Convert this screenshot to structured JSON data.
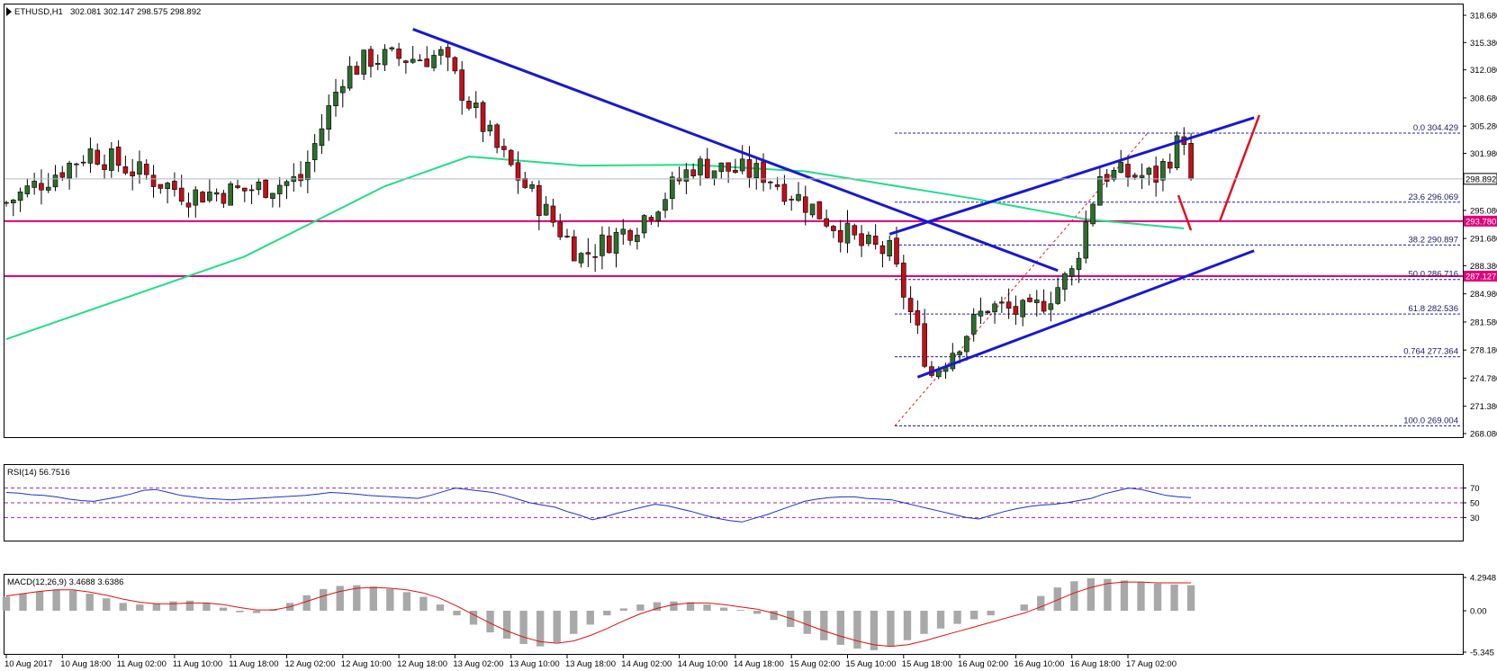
{
  "panels": {
    "main": {
      "header": {
        "symbol": "ETHUSD,H1",
        "ohlc": "302.081 302.147 298.575 298.892"
      },
      "price_axis_labels": [
        "318.680",
        "315.380",
        "312.080",
        "308.680",
        "305.280",
        "301.980",
        "298.580",
        "295.080",
        "291.680",
        "288.380",
        "284.980",
        "281.580",
        "278.180",
        "274.780",
        "271.380",
        "268.080"
      ],
      "current_price": "298.892",
      "horizontal_levels": [
        {
          "label": "293.780",
          "value": 293.78,
          "color": "#e0007a"
        },
        {
          "label": "287.127",
          "value": 287.127,
          "color": "#e0007a"
        }
      ],
      "fib_levels": [
        {
          "label": "0.0  304.429",
          "value": 304.429
        },
        {
          "label": "23.6  296.069",
          "value": 296.069
        },
        {
          "label": "38.2  290.897",
          "value": 290.897
        },
        {
          "label": "50.0  286.716",
          "value": 286.716
        },
        {
          "label": "61.8  282.536",
          "value": 282.536
        },
        {
          "label": "0.764  277.364",
          "value": 277.364
        },
        {
          "label": "100.0  269.004",
          "value": 269.004
        }
      ]
    },
    "rsi": {
      "header": "RSI(14) 56.7516",
      "axis_labels": [
        "70",
        "50",
        "30"
      ]
    },
    "macd": {
      "header": "MACD(12,26,9) 3.4688 3.6386",
      "axis_labels": [
        "4.2948",
        "0.00",
        "-5.345"
      ]
    }
  },
  "time_axis_labels": [
    "10 Aug 2017",
    "10 Aug 18:00",
    "11 Aug 02:00",
    "11 Aug 10:00",
    "11 Aug 18:00",
    "12 Aug 02:00",
    "12 Aug 10:00",
    "12 Aug 18:00",
    "13 Aug 02:00",
    "13 Aug 10:00",
    "13 Aug 18:00",
    "14 Aug 02:00",
    "14 Aug 10:00",
    "14 Aug 18:00",
    "15 Aug 02:00",
    "15 Aug 10:00",
    "15 Aug 18:00",
    "16 Aug 02:00",
    "16 Aug 10:00",
    "16 Aug 18:00",
    "17 Aug 02:00"
  ],
  "colors": {
    "bull_candle": "#2d6e2d",
    "bear_candle": "#c0101a",
    "ma_line": "#22dd88",
    "trendline": "#1818d0",
    "support_resistance": "#e0007a",
    "fib": "#2020a0",
    "rsi_line": "#1d2fd0",
    "macd_signal": "#e01010",
    "macd_hist": "#a8a8a8",
    "arrows": "#e01020"
  },
  "chart_data": {
    "type": "candlestick",
    "symbol": "ETHUSD",
    "timeframe": "H1",
    "ylim": [
      268.08,
      318.68
    ],
    "anchors": [
      {
        "x": "10 Aug 2017",
        "close": 296
      },
      {
        "x": "10 Aug 12:00",
        "close": 302.2
      },
      {
        "x": "11 Aug 02:00",
        "close": 297
      },
      {
        "x": "11 Aug 10:00",
        "close": 297.5
      },
      {
        "x": "11 Aug 18:00",
        "close": 298.8
      },
      {
        "x": "12 Aug 00:00",
        "close": 311.5
      },
      {
        "x": "12 Aug 04:00",
        "close": 313.5
      },
      {
        "x": "12 Aug 10:00",
        "close": 313.5
      },
      {
        "x": "12 Aug 14:00",
        "close": 313.8
      },
      {
        "x": "12 Aug 22:00",
        "close": 302.5
      },
      {
        "x": "13 Aug 02:00",
        "close": 298
      },
      {
        "x": "13 Aug 10:00",
        "close": 289.5
      },
      {
        "x": "13 Aug 18:00",
        "close": 293.5
      },
      {
        "x": "14 Aug 02:00",
        "close": 300.5
      },
      {
        "x": "14 Aug 12:00",
        "close": 299.5
      },
      {
        "x": "14 Aug 18:00",
        "close": 296
      },
      {
        "x": "15 Aug 02:00",
        "close": 290.8
      },
      {
        "x": "15 Aug 06:00",
        "close": 290
      },
      {
        "x": "15 Aug 12:00",
        "close": 275.2
      },
      {
        "x": "15 Aug 20:00",
        "close": 283.5
      },
      {
        "x": "16 Aug 02:00",
        "close": 282.5
      },
      {
        "x": "16 Aug 08:00",
        "close": 287.5
      },
      {
        "x": "16 Aug 12:00",
        "close": 299.5
      },
      {
        "x": "16 Aug 20:00",
        "close": 299.2
      },
      {
        "x": "17 Aug 00:00",
        "close": 304.2
      },
      {
        "x": "17 Aug 01:00",
        "close": 298.892
      }
    ],
    "moving_average": [
      {
        "x": "10 Aug 2017",
        "y": 279.5
      },
      {
        "x": "11 Aug 10:00",
        "y": 289.5
      },
      {
        "x": "12 Aug 06:00",
        "y": 298
      },
      {
        "x": "12 Aug 18:00",
        "y": 301.6
      },
      {
        "x": "13 Aug 10:00",
        "y": 300.5
      },
      {
        "x": "14 Aug 02:00",
        "y": 300.6
      },
      {
        "x": "14 Aug 18:00",
        "y": 299.8
      },
      {
        "x": "15 Aug 18:00",
        "y": 296.5
      },
      {
        "x": "16 Aug 10:00",
        "y": 294
      },
      {
        "x": "17 Aug 00:00",
        "y": 292.9
      }
    ],
    "rsi": {
      "levels": [
        70,
        50,
        30
      ],
      "values": [
        64,
        63,
        61,
        60,
        58,
        55,
        53,
        52,
        55,
        58,
        62,
        67,
        68,
        64,
        60,
        58,
        56,
        55,
        54,
        55,
        56,
        57,
        58,
        59,
        60,
        62,
        64,
        63,
        62,
        60,
        59,
        58,
        57,
        56,
        60,
        65,
        70,
        68,
        66,
        64,
        60,
        55,
        50,
        47,
        44,
        38,
        33,
        27,
        31,
        36,
        40,
        44,
        48,
        46,
        42,
        38,
        33,
        29,
        26,
        24,
        29,
        34,
        40,
        46,
        52,
        55,
        57,
        58,
        58,
        56,
        55,
        54,
        50,
        46,
        42,
        38,
        34,
        30,
        28,
        33,
        38,
        42,
        45,
        47,
        48,
        50,
        53,
        56,
        62,
        66,
        70,
        68,
        64,
        60,
        58,
        57
      ]
    },
    "macd": {
      "ylim": [
        -5.345,
        4.2948
      ],
      "histogram": [
        1.8,
        2.2,
        2.5,
        2.7,
        2.6,
        2.2,
        1.6,
        1.0,
        0.8,
        0.9,
        1.2,
        1.3,
        1.0,
        0.4,
        -0.2,
        -0.3,
        0.2,
        1.0,
        2.0,
        2.8,
        3.2,
        3.3,
        3.1,
        2.8,
        2.4,
        1.8,
        0.8,
        -0.6,
        -1.8,
        -2.8,
        -3.6,
        -4.3,
        -4.6,
        -4.1,
        -3.0,
        -1.8,
        -0.6,
        0.3,
        0.8,
        1.1,
        1.2,
        1.1,
        0.8,
        0.4,
        0.1,
        -0.4,
        -1.2,
        -2.1,
        -3.0,
        -3.8,
        -4.4,
        -4.9,
        -5.1,
        -4.6,
        -3.8,
        -3.0,
        -2.3,
        -1.7,
        -1.1,
        -0.6,
        0.0,
        0.8,
        1.9,
        3.0,
        3.8,
        4.2,
        4.1,
        3.9,
        3.7,
        3.5,
        3.4,
        3.3
      ],
      "signal": [
        1.9,
        2.2,
        2.5,
        2.7,
        2.7,
        2.4,
        2.0,
        1.5,
        1.1,
        0.9,
        0.9,
        1.0,
        1.0,
        0.8,
        0.4,
        0.1,
        0.1,
        0.5,
        1.2,
        1.9,
        2.5,
        2.9,
        3.0,
        2.9,
        2.7,
        2.3,
        1.6,
        0.6,
        -0.5,
        -1.6,
        -2.6,
        -3.4,
        -4.0,
        -4.2,
        -3.9,
        -3.2,
        -2.3,
        -1.3,
        -0.4,
        0.3,
        0.8,
        1.0,
        1.0,
        0.8,
        0.5,
        0.2,
        -0.3,
        -1.0,
        -1.8,
        -2.6,
        -3.3,
        -3.9,
        -4.4,
        -4.6,
        -4.4,
        -3.9,
        -3.3,
        -2.7,
        -2.1,
        -1.5,
        -0.9,
        -0.3,
        0.5,
        1.4,
        2.3,
        3.0,
        3.5,
        3.7,
        3.7,
        3.6,
        3.6,
        3.6
      ]
    }
  }
}
